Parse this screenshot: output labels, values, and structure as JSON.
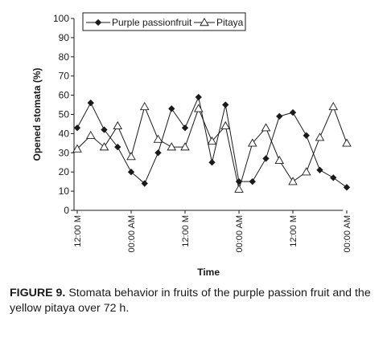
{
  "chart_data": {
    "type": "line",
    "ylabel": "Opened stomata (%)",
    "xlabel": "Time",
    "ylim": [
      0,
      100
    ],
    "yticks": [
      0,
      10,
      20,
      30,
      40,
      50,
      60,
      70,
      80,
      90,
      100
    ],
    "xlim": [
      0,
      19
    ],
    "x_ticks": [
      {
        "x": 0,
        "label": "12:00 M"
      },
      {
        "x": 4,
        "label": "00:00 AM"
      },
      {
        "x": 8,
        "label": "12:00 M"
      },
      {
        "x": 12,
        "label": "00:00 AM"
      },
      {
        "x": 16,
        "label": "12:00 M"
      },
      {
        "x": 20,
        "label": "00:00 AM"
      }
    ],
    "legend_position": "top",
    "x": [
      0,
      1,
      2,
      3,
      4,
      5,
      6,
      7,
      8,
      9,
      10,
      11,
      12,
      13,
      14,
      15,
      16,
      17,
      18,
      19,
      20
    ],
    "series": [
      {
        "name": "Purple passionfruit",
        "marker": "diamond-filled",
        "color": "#1a1a1a",
        "values": [
          43,
          56,
          42,
          33,
          20,
          14,
          30,
          53,
          43,
          59,
          25,
          55,
          15,
          15,
          27,
          49,
          51,
          39,
          21,
          17,
          12
        ]
      },
      {
        "name": "Pitaya",
        "marker": "triangle-open",
        "color": "#1a1a1a",
        "values": [
          32,
          39,
          33,
          44,
          28,
          54,
          37,
          33,
          33,
          53,
          36,
          44,
          11,
          35,
          43,
          26,
          15,
          20,
          38,
          54,
          35
        ]
      }
    ]
  },
  "caption": {
    "label": "FIGURE 9.",
    "text": " Stomata behavior in fruits of the purple passion fruit and the yellow pitaya over 72 h."
  }
}
